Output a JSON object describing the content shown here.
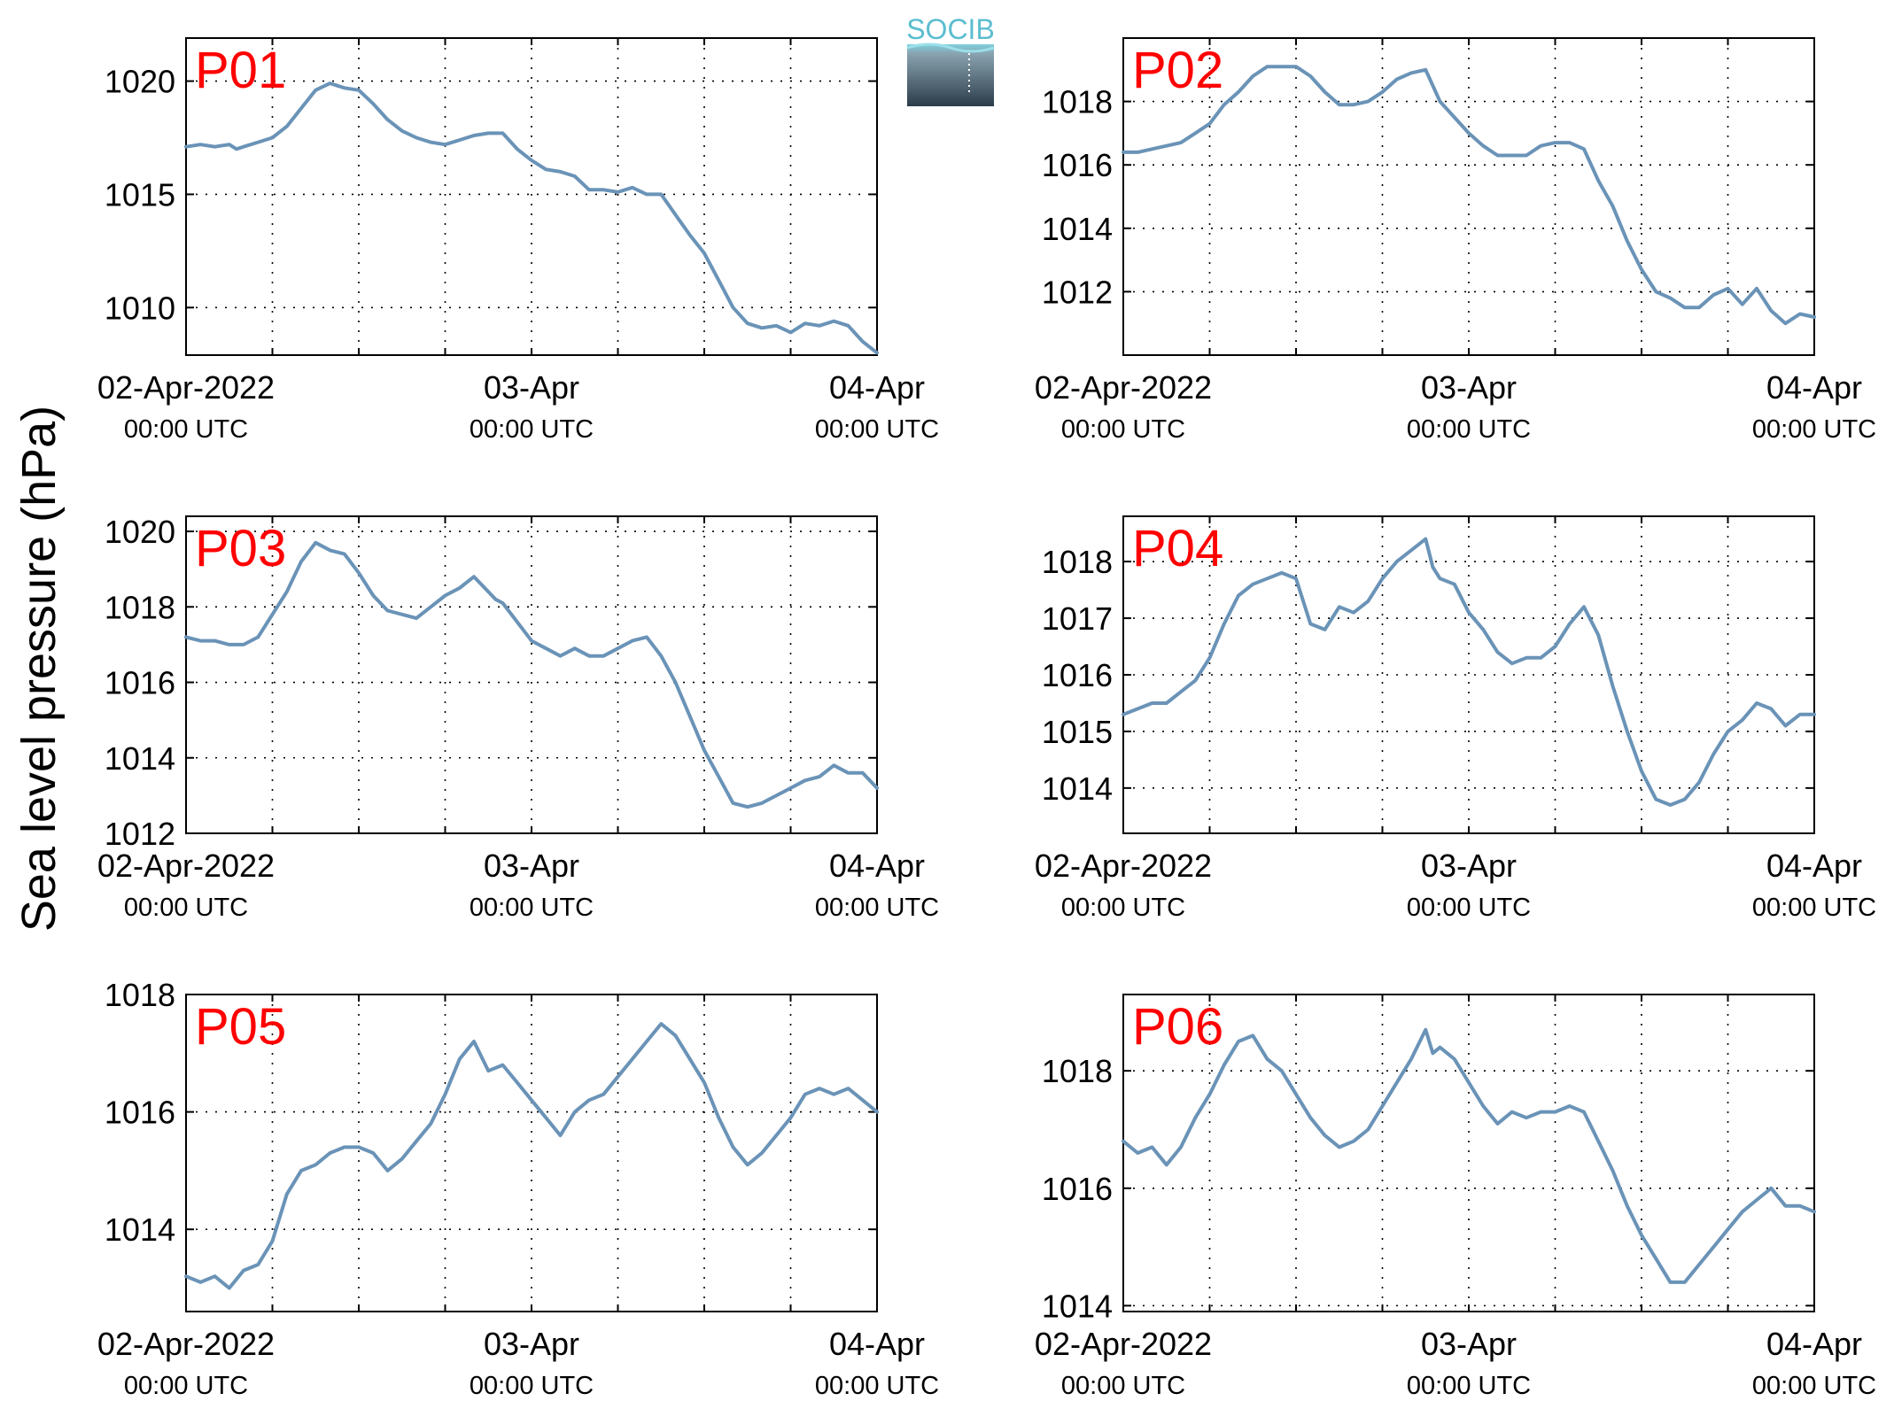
{
  "figure": {
    "ylabel": "Sea level pressure (hPa)",
    "logo_text": "SOCIB",
    "line_color": "#6a93b7",
    "panel_label_color": "#ff0000"
  },
  "chart_data": [
    {
      "type": "line",
      "label": "P01",
      "xlim": [
        0,
        48
      ],
      "ylim": [
        1007.9,
        1021.9
      ],
      "yticks": [
        1010,
        1015,
        1020
      ],
      "xticks": [
        {
          "x": 0,
          "line1": "02-Apr-2022",
          "line2": "00:00 UTC"
        },
        {
          "x": 24,
          "line1": "03-Apr",
          "line2": "00:00 UTC"
        },
        {
          "x": 48,
          "line1": "04-Apr",
          "line2": "00:00 UTC"
        }
      ],
      "x_unit": "hours since 02-Apr-2022 00:00 UTC",
      "x": [
        0,
        1,
        2,
        3,
        3.5,
        4,
        5,
        6,
        7,
        8,
        9,
        10,
        11,
        12,
        13,
        14,
        15,
        16,
        17,
        18,
        19,
        20,
        21,
        22,
        23,
        24,
        25,
        26,
        27,
        28,
        29,
        30,
        31,
        32,
        33,
        34,
        35,
        36,
        37,
        38,
        39,
        40,
        41,
        42,
        43,
        44,
        45,
        46,
        47,
        48
      ],
      "y": [
        1017.1,
        1017.2,
        1017.1,
        1017.2,
        1017.0,
        1017.1,
        1017.3,
        1017.5,
        1018.0,
        1018.8,
        1019.6,
        1019.9,
        1019.7,
        1019.6,
        1019.0,
        1018.3,
        1017.8,
        1017.5,
        1017.3,
        1017.2,
        1017.4,
        1017.6,
        1017.7,
        1017.7,
        1017.0,
        1016.5,
        1016.1,
        1016.0,
        1015.8,
        1015.2,
        1015.2,
        1015.1,
        1015.3,
        1015.0,
        1015.0,
        1014.1,
        1013.2,
        1012.4,
        1011.2,
        1010.0,
        1009.3,
        1009.1,
        1009.2,
        1008.9,
        1009.3,
        1009.2,
        1009.4,
        1009.2,
        1008.5,
        1008.0
      ]
    },
    {
      "type": "line",
      "label": "P02",
      "xlim": [
        0,
        48
      ],
      "ylim": [
        1010.0,
        1020.0
      ],
      "yticks": [
        1012,
        1014,
        1016,
        1018
      ],
      "xticks": [
        {
          "x": 0,
          "line1": "02-Apr-2022",
          "line2": "00:00 UTC"
        },
        {
          "x": 24,
          "line1": "03-Apr",
          "line2": "00:00 UTC"
        },
        {
          "x": 48,
          "line1": "04-Apr",
          "line2": "00:00 UTC"
        }
      ],
      "x_unit": "hours since 02-Apr-2022 00:00 UTC",
      "x": [
        0,
        1,
        2,
        3,
        4,
        5,
        6,
        7,
        8,
        9,
        10,
        11,
        12,
        13,
        14,
        15,
        16,
        17,
        18,
        19,
        20,
        21,
        21.5,
        22,
        23,
        24,
        25,
        26,
        27,
        28,
        29,
        30,
        31,
        32,
        33,
        34,
        35,
        36,
        37,
        38,
        39,
        40,
        41,
        42,
        43,
        44,
        45,
        46,
        47,
        48
      ],
      "y": [
        1016.4,
        1016.4,
        1016.5,
        1016.6,
        1016.7,
        1017.0,
        1017.3,
        1017.9,
        1018.3,
        1018.8,
        1019.1,
        1019.1,
        1019.1,
        1018.8,
        1018.3,
        1017.9,
        1017.9,
        1018.0,
        1018.3,
        1018.7,
        1018.9,
        1019.0,
        1018.5,
        1018.0,
        1017.5,
        1017.0,
        1016.6,
        1016.3,
        1016.3,
        1016.3,
        1016.6,
        1016.7,
        1016.7,
        1016.5,
        1015.5,
        1014.7,
        1013.6,
        1012.7,
        1012.0,
        1011.8,
        1011.5,
        1011.5,
        1011.9,
        1012.1,
        1011.6,
        1012.1,
        1011.4,
        1011.0,
        1011.3,
        1011.2
      ]
    },
    {
      "type": "line",
      "label": "P03",
      "xlim": [
        0,
        48
      ],
      "ylim": [
        1012.0,
        1020.4
      ],
      "yticks": [
        1012,
        1014,
        1016,
        1018,
        1020
      ],
      "xticks": [
        {
          "x": 0,
          "line1": "02-Apr-2022",
          "line2": "00:00 UTC"
        },
        {
          "x": 24,
          "line1": "03-Apr",
          "line2": "00:00 UTC"
        },
        {
          "x": 48,
          "line1": "04-Apr",
          "line2": "00:00 UTC"
        }
      ],
      "x_unit": "hours since 02-Apr-2022 00:00 UTC",
      "x": [
        0,
        1,
        2,
        3,
        4,
        5,
        6,
        7,
        8,
        9,
        10,
        11,
        12,
        13,
        14,
        15,
        16,
        17,
        18,
        19,
        20,
        21,
        21.5,
        22,
        23,
        24,
        25,
        26,
        27,
        28,
        29,
        30,
        31,
        32,
        33,
        34,
        35,
        36,
        37,
        38,
        39,
        40,
        41,
        42,
        43,
        44,
        45,
        46,
        47,
        48
      ],
      "y": [
        1017.2,
        1017.1,
        1017.1,
        1017.0,
        1017.0,
        1017.2,
        1017.8,
        1018.4,
        1019.2,
        1019.7,
        1019.5,
        1019.4,
        1018.9,
        1018.3,
        1017.9,
        1017.8,
        1017.7,
        1018.0,
        1018.3,
        1018.5,
        1018.8,
        1018.4,
        1018.2,
        1018.1,
        1017.6,
        1017.1,
        1016.9,
        1016.7,
        1016.9,
        1016.7,
        1016.7,
        1016.9,
        1017.1,
        1017.2,
        1016.7,
        1016.0,
        1015.1,
        1014.2,
        1013.5,
        1012.8,
        1012.7,
        1012.8,
        1013.0,
        1013.2,
        1013.4,
        1013.5,
        1013.8,
        1013.6,
        1013.6,
        1013.2
      ]
    },
    {
      "type": "line",
      "label": "P04",
      "xlim": [
        0,
        48
      ],
      "ylim": [
        1013.2,
        1018.8
      ],
      "yticks": [
        1014,
        1015,
        1016,
        1017,
        1018
      ],
      "xticks": [
        {
          "x": 0,
          "line1": "02-Apr-2022",
          "line2": "00:00 UTC"
        },
        {
          "x": 24,
          "line1": "03-Apr",
          "line2": "00:00 UTC"
        },
        {
          "x": 48,
          "line1": "04-Apr",
          "line2": "00:00 UTC"
        }
      ],
      "x_unit": "hours since 02-Apr-2022 00:00 UTC",
      "x": [
        0,
        1,
        2,
        3,
        4,
        5,
        6,
        7,
        8,
        9,
        10,
        11,
        12,
        13,
        14,
        15,
        16,
        17,
        18,
        19,
        20,
        21,
        21.5,
        22,
        23,
        24,
        25,
        26,
        27,
        28,
        29,
        30,
        31,
        32,
        33,
        34,
        35,
        36,
        37,
        38,
        39,
        40,
        41,
        42,
        43,
        44,
        45,
        46,
        47,
        48
      ],
      "y": [
        1015.3,
        1015.4,
        1015.5,
        1015.5,
        1015.7,
        1015.9,
        1016.3,
        1016.9,
        1017.4,
        1017.6,
        1017.7,
        1017.8,
        1017.7,
        1016.9,
        1016.8,
        1017.2,
        1017.1,
        1017.3,
        1017.7,
        1018.0,
        1018.2,
        1018.4,
        1017.9,
        1017.7,
        1017.6,
        1017.1,
        1016.8,
        1016.4,
        1016.2,
        1016.3,
        1016.3,
        1016.5,
        1016.9,
        1017.2,
        1016.7,
        1015.8,
        1015.0,
        1014.3,
        1013.8,
        1013.7,
        1013.8,
        1014.1,
        1014.6,
        1015.0,
        1015.2,
        1015.5,
        1015.4,
        1015.1,
        1015.3,
        1015.3
      ]
    },
    {
      "type": "line",
      "label": "P05",
      "xlim": [
        0,
        48
      ],
      "ylim": [
        1012.6,
        1018.0
      ],
      "yticks": [
        1014,
        1016,
        1018
      ],
      "xticks": [
        {
          "x": 0,
          "line1": "02-Apr-2022",
          "line2": "00:00 UTC"
        },
        {
          "x": 24,
          "line1": "03-Apr",
          "line2": "00:00 UTC"
        },
        {
          "x": 48,
          "line1": "04-Apr",
          "line2": "00:00 UTC"
        }
      ],
      "x_unit": "hours since 02-Apr-2022 00:00 UTC",
      "x": [
        0,
        1,
        2,
        3,
        4,
        5,
        6,
        7,
        8,
        9,
        10,
        11,
        12,
        13,
        14,
        15,
        16,
        17,
        18,
        19,
        20,
        21,
        22,
        23,
        24,
        25,
        26,
        27,
        28,
        29,
        30,
        31,
        32,
        33,
        34,
        35,
        36,
        37,
        38,
        39,
        40,
        41,
        42,
        43,
        44,
        45,
        46,
        47,
        48
      ],
      "y": [
        1013.2,
        1013.1,
        1013.2,
        1013.0,
        1013.3,
        1013.4,
        1013.8,
        1014.6,
        1015.0,
        1015.1,
        1015.3,
        1015.4,
        1015.4,
        1015.3,
        1015.0,
        1015.2,
        1015.5,
        1015.8,
        1016.3,
        1016.9,
        1017.2,
        1016.7,
        1016.8,
        1016.5,
        1016.2,
        1015.9,
        1015.6,
        1016.0,
        1016.2,
        1016.3,
        1016.6,
        1016.9,
        1017.2,
        1017.5,
        1017.3,
        1016.9,
        1016.5,
        1015.9,
        1015.4,
        1015.1,
        1015.3,
        1015.6,
        1015.9,
        1016.3,
        1016.4,
        1016.3,
        1016.4,
        1016.2,
        1016.0
      ]
    },
    {
      "type": "line",
      "label": "P06",
      "xlim": [
        0,
        48
      ],
      "ylim": [
        1013.9,
        1019.3
      ],
      "yticks": [
        1014,
        1016,
        1018
      ],
      "xticks": [
        {
          "x": 0,
          "line1": "02-Apr-2022",
          "line2": "00:00 UTC"
        },
        {
          "x": 24,
          "line1": "03-Apr",
          "line2": "00:00 UTC"
        },
        {
          "x": 48,
          "line1": "04-Apr",
          "line2": "00:00 UTC"
        }
      ],
      "x_unit": "hours since 02-Apr-2022 00:00 UTC",
      "x": [
        0,
        1,
        2,
        3,
        4,
        5,
        6,
        7,
        8,
        9,
        10,
        11,
        12,
        13,
        14,
        15,
        16,
        17,
        18,
        19,
        20,
        21,
        21.5,
        22,
        23,
        24,
        25,
        26,
        27,
        28,
        29,
        30,
        31,
        32,
        33,
        34,
        35,
        36,
        37,
        38,
        39,
        40,
        41,
        42,
        43,
        44,
        45,
        46,
        47,
        48
      ],
      "y": [
        1016.8,
        1016.6,
        1016.7,
        1016.4,
        1016.7,
        1017.2,
        1017.6,
        1018.1,
        1018.5,
        1018.6,
        1018.2,
        1018.0,
        1017.6,
        1017.2,
        1016.9,
        1016.7,
        1016.8,
        1017.0,
        1017.4,
        1017.8,
        1018.2,
        1018.7,
        1018.3,
        1018.4,
        1018.2,
        1017.8,
        1017.4,
        1017.1,
        1017.3,
        1017.2,
        1017.3,
        1017.3,
        1017.4,
        1017.3,
        1016.8,
        1016.3,
        1015.7,
        1015.2,
        1014.8,
        1014.4,
        1014.4,
        1014.7,
        1015.0,
        1015.3,
        1015.6,
        1015.8,
        1016.0,
        1015.7,
        1015.7,
        1015.6
      ]
    }
  ]
}
